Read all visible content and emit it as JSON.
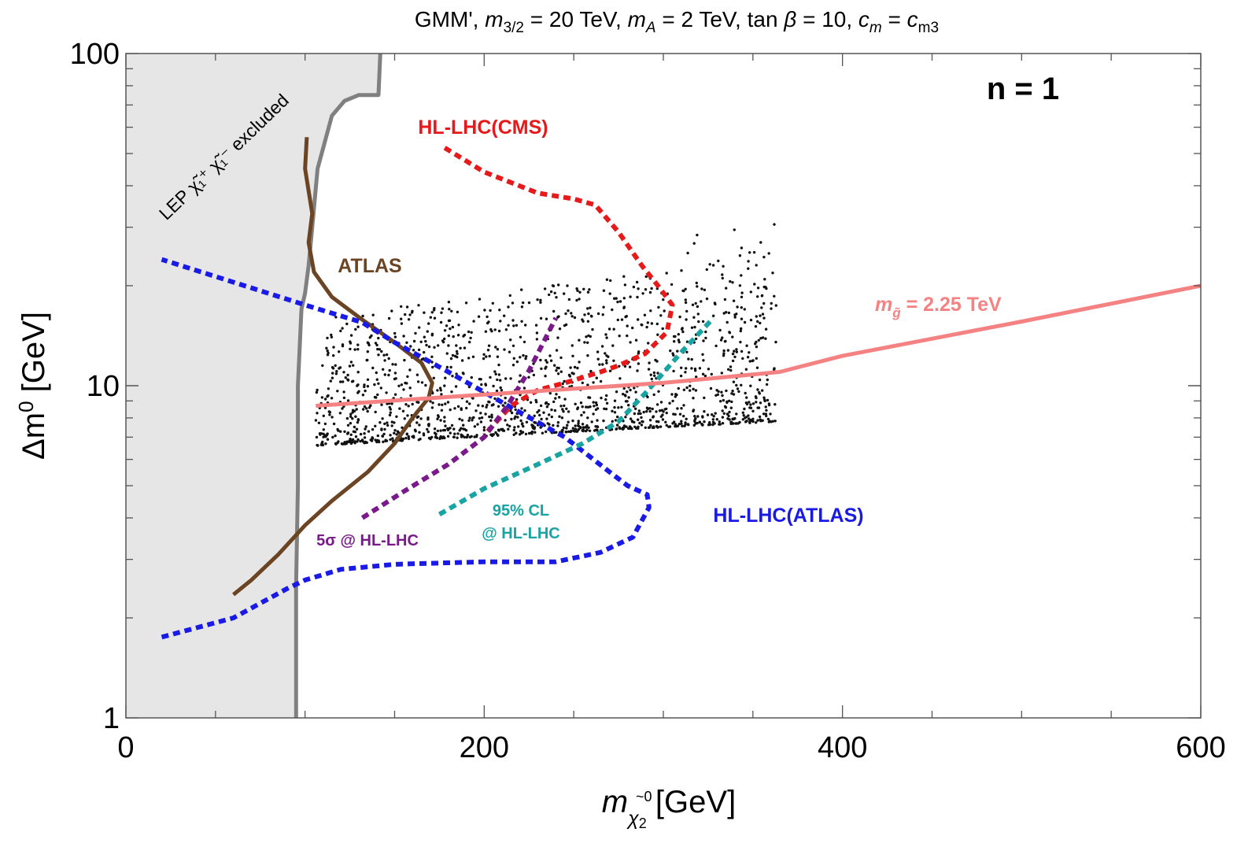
{
  "chart_data": {
    "type": "scatter",
    "title": {
      "prefix": "GMM', ",
      "m32_label": "m",
      "m32_sub": "3/2",
      "m32_val": " = 20 TeV, ",
      "mA_label": "m",
      "mA_sub": "A",
      "mA_val": " = 2 TeV, tan ",
      "beta": "β",
      "beta_val": " = 10, ",
      "cm_label": "c",
      "cm_sub": "m",
      "cm_eq": " = ",
      "cm3_label": "c",
      "cm3_sub": "m3"
    },
    "xlabel": {
      "m": "m",
      "sub": "χ",
      "sub2": "2",
      "over": "~0",
      "unit": " [GeV]"
    },
    "ylabel": {
      "main": "Δm",
      "sup": "0",
      "unit": " [GeV]"
    },
    "x_range": [
      0,
      600
    ],
    "y_range": [
      1,
      100
    ],
    "y_scale": "log",
    "x_ticks": [
      0,
      200,
      400,
      600
    ],
    "x_tick_labels": [
      "0",
      "200",
      "400",
      "600"
    ],
    "y_ticks": [
      1,
      10,
      100
    ],
    "y_tick_labels": [
      "1",
      "10",
      "100"
    ],
    "panel_label": "n = 1",
    "lep_label": "LEP χ̃₁⁺ χ̃₁⁻ excluded",
    "colors": {
      "lep_fill": "#e6e6e6",
      "lep_line": "#808080",
      "atlas": "#6b4423",
      "hl_atlas": "#1a1ae6",
      "hl_cms": "#e61a1a",
      "five_sigma": "#7a1a8a",
      "cl95": "#1aa3a3",
      "gluino": "#f58282",
      "points": "#111111"
    },
    "scatter_info": {
      "x_range": [
        106,
        363
      ],
      "y_band_low": [
        6.6,
        7.8
      ],
      "count": 1600
    },
    "curves": [
      {
        "name": "LEP boundary",
        "label": "",
        "style": "solid",
        "color_key": "lep_line",
        "x": [
          95,
          95,
          96,
          96,
          98,
          100,
          102,
          104,
          107,
          115,
          122,
          130,
          141,
          142
        ],
        "y": [
          1,
          2.5,
          5,
          10,
          17,
          19,
          23,
          30,
          45,
          65,
          72,
          75,
          75,
          100
        ]
      },
      {
        "name": "ATLAS",
        "label": "ATLAS",
        "style": "solid",
        "color_key": "atlas",
        "x": [
          60,
          70,
          85,
          100,
          115,
          135,
          150,
          160,
          169,
          171,
          165,
          150,
          132,
          115,
          105,
          102,
          104,
          100,
          101
        ],
        "y": [
          2.35,
          2.6,
          3.1,
          3.8,
          4.5,
          5.5,
          6.7,
          8.0,
          9.2,
          10.2,
          11.7,
          13.5,
          15.8,
          18.5,
          22,
          27,
          33,
          45,
          56
        ]
      },
      {
        "name": "HL-LHC(ATLAS)",
        "label": "HL-LHC(ATLAS)",
        "style": "dotted",
        "color_key": "hl_atlas",
        "x": [
          20,
          60,
          90,
          100,
          120,
          150,
          200,
          240,
          265,
          283,
          292,
          291,
          280,
          270,
          245,
          215,
          180,
          150,
          132,
          100,
          20
        ],
        "y": [
          1.75,
          2.0,
          2.45,
          2.6,
          2.8,
          2.9,
          2.95,
          2.95,
          3.15,
          3.5,
          4.3,
          4.7,
          5.0,
          5.5,
          7.0,
          8.6,
          11,
          13.5,
          15.5,
          17.5,
          24
        ]
      },
      {
        "name": "HL-LHC(CMS)",
        "label": "HL-LHC(CMS)",
        "style": "dotted",
        "color_key": "hl_cms",
        "x": [
          178,
          200,
          230,
          250,
          262,
          275,
          288,
          297,
          305,
          302,
          290,
          275,
          265,
          245,
          230,
          215,
          200
        ],
        "y": [
          52,
          44,
          38,
          36.5,
          35,
          29,
          23,
          20,
          17.5,
          14.5,
          12.5,
          11.5,
          11,
          10.2,
          9.7,
          8.7,
          7.1
        ]
      },
      {
        "name": "5σ @ HL-LHC",
        "label": "5σ @ HL-LHC",
        "style": "dotted",
        "color_key": "five_sigma",
        "x": [
          132,
          155,
          180,
          200,
          213,
          225,
          240
        ],
        "y": [
          4.0,
          4.8,
          5.8,
          7.0,
          8.7,
          11.1,
          16.0
        ]
      },
      {
        "name": "95% CL @ HL-LHC",
        "label_line1": "95% CL",
        "label_line2": "@ HL-LHC",
        "style": "dotted",
        "color_key": "cl95",
        "x": [
          175,
          200,
          230,
          255,
          275,
          290,
          310,
          328
        ],
        "y": [
          4.1,
          4.9,
          5.8,
          6.7,
          7.8,
          9.5,
          12.6,
          16.0
        ]
      },
      {
        "name": "gluino mass 2.25 TeV",
        "label_m": "m",
        "label_sub": "g̃",
        "label_val": " = 2.25 TeV",
        "style": "solid",
        "color_key": "gluino",
        "x": [
          106,
          200,
          300,
          365,
          400,
          500,
          600
        ],
        "y": [
          8.7,
          9.4,
          10.2,
          11.0,
          12.3,
          15.6,
          20.0
        ]
      }
    ]
  }
}
